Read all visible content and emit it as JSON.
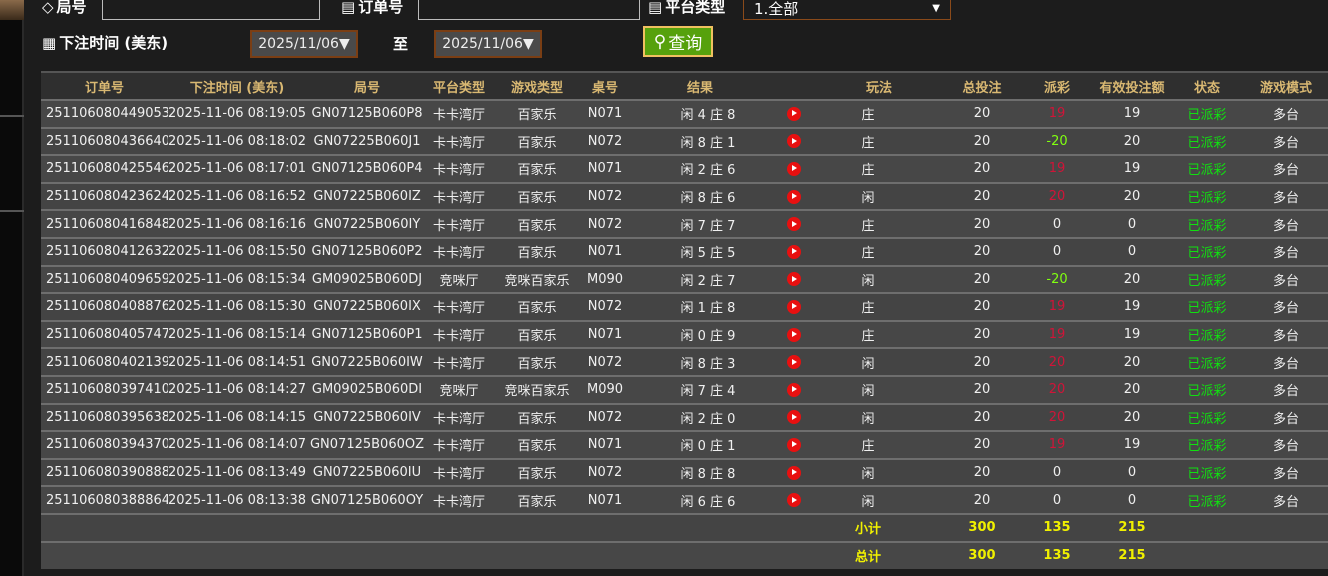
{
  "filters": {
    "round_label": "局号",
    "round_value": "",
    "order_label": "订单号",
    "order_value": "",
    "platform_label": "平台类型",
    "platform_value": "1.全部",
    "time_label": "下注时间 (美东)",
    "date_from": "2025/11/06▼",
    "to_label": "至",
    "date_to": "2025/11/06▼",
    "query_label": "查询"
  },
  "colors": {
    "accent_button": "#56a10c",
    "header_text": "#d9b872",
    "payout_red": "#d01438",
    "payout_green": "#80ff10",
    "status": "#10e010",
    "totals": "#f0f000"
  },
  "table": {
    "headers": [
      "订单号",
      "下注时间 (美东)",
      "局号",
      "平台类型",
      "游戏类型",
      "桌号",
      "结果",
      "",
      "玩法",
      "总投注",
      "派彩",
      "有效投注额",
      "状态",
      "游戏模式"
    ],
    "video_icon": "play-video-icon",
    "rows": [
      {
        "order": "251106080449053",
        "time": "2025-11-06 08:19:05",
        "round": "GN07125B060P8",
        "platform": "卡卡湾厅",
        "game": "百家乐",
        "table": "N071",
        "result": "闲 4 庄 8",
        "bet": "庄",
        "total": "20",
        "payout": "19",
        "payout_color": "red",
        "valid": "19",
        "status": "已派彩",
        "mode": "多台"
      },
      {
        "order": "251106080436640",
        "time": "2025-11-06 08:18:02",
        "round": "GN07225B060J1",
        "platform": "卡卡湾厅",
        "game": "百家乐",
        "table": "N072",
        "result": "闲 8 庄 1",
        "bet": "庄",
        "total": "20",
        "payout": "-20",
        "payout_color": "green",
        "valid": "20",
        "status": "已派彩",
        "mode": "多台"
      },
      {
        "order": "251106080425546",
        "time": "2025-11-06 08:17:01",
        "round": "GN07125B060P4",
        "platform": "卡卡湾厅",
        "game": "百家乐",
        "table": "N071",
        "result": "闲 2 庄 6",
        "bet": "庄",
        "total": "20",
        "payout": "19",
        "payout_color": "red",
        "valid": "19",
        "status": "已派彩",
        "mode": "多台"
      },
      {
        "order": "251106080423624",
        "time": "2025-11-06 08:16:52",
        "round": "GN07225B060IZ",
        "platform": "卡卡湾厅",
        "game": "百家乐",
        "table": "N072",
        "result": "闲 8 庄 6",
        "bet": "闲",
        "total": "20",
        "payout": "20",
        "payout_color": "red",
        "valid": "20",
        "status": "已派彩",
        "mode": "多台"
      },
      {
        "order": "251106080416848",
        "time": "2025-11-06 08:16:16",
        "round": "GN07225B060IY",
        "platform": "卡卡湾厅",
        "game": "百家乐",
        "table": "N072",
        "result": "闲 7 庄 7",
        "bet": "庄",
        "total": "20",
        "payout": "0",
        "payout_color": "white",
        "valid": "0",
        "status": "已派彩",
        "mode": "多台"
      },
      {
        "order": "251106080412632",
        "time": "2025-11-06 08:15:50",
        "round": "GN07125B060P2",
        "platform": "卡卡湾厅",
        "game": "百家乐",
        "table": "N071",
        "result": "闲 5 庄 5",
        "bet": "庄",
        "total": "20",
        "payout": "0",
        "payout_color": "white",
        "valid": "0",
        "status": "已派彩",
        "mode": "多台"
      },
      {
        "order": "251106080409659",
        "time": "2025-11-06 08:15:34",
        "round": "GM09025B060DJ",
        "platform": "竞咪厅",
        "game": "竞咪百家乐",
        "table": "M090",
        "result": "闲 2 庄 7",
        "bet": "闲",
        "total": "20",
        "payout": "-20",
        "payout_color": "green",
        "valid": "20",
        "status": "已派彩",
        "mode": "多台"
      },
      {
        "order": "251106080408876",
        "time": "2025-11-06 08:15:30",
        "round": "GN07225B060IX",
        "platform": "卡卡湾厅",
        "game": "百家乐",
        "table": "N072",
        "result": "闲 1 庄 8",
        "bet": "庄",
        "total": "20",
        "payout": "19",
        "payout_color": "red",
        "valid": "19",
        "status": "已派彩",
        "mode": "多台"
      },
      {
        "order": "251106080405747",
        "time": "2025-11-06 08:15:14",
        "round": "GN07125B060P1",
        "platform": "卡卡湾厅",
        "game": "百家乐",
        "table": "N071",
        "result": "闲 0 庄 9",
        "bet": "庄",
        "total": "20",
        "payout": "19",
        "payout_color": "red",
        "valid": "19",
        "status": "已派彩",
        "mode": "多台"
      },
      {
        "order": "251106080402139",
        "time": "2025-11-06 08:14:51",
        "round": "GN07225B060IW",
        "platform": "卡卡湾厅",
        "game": "百家乐",
        "table": "N072",
        "result": "闲 8 庄 3",
        "bet": "闲",
        "total": "20",
        "payout": "20",
        "payout_color": "red",
        "valid": "20",
        "status": "已派彩",
        "mode": "多台"
      },
      {
        "order": "251106080397410",
        "time": "2025-11-06 08:14:27",
        "round": "GM09025B060DI",
        "platform": "竞咪厅",
        "game": "竞咪百家乐",
        "table": "M090",
        "result": "闲 7 庄 4",
        "bet": "闲",
        "total": "20",
        "payout": "20",
        "payout_color": "red",
        "valid": "20",
        "status": "已派彩",
        "mode": "多台"
      },
      {
        "order": "251106080395638",
        "time": "2025-11-06 08:14:15",
        "round": "GN07225B060IV",
        "platform": "卡卡湾厅",
        "game": "百家乐",
        "table": "N072",
        "result": "闲 2 庄 0",
        "bet": "闲",
        "total": "20",
        "payout": "20",
        "payout_color": "red",
        "valid": "20",
        "status": "已派彩",
        "mode": "多台"
      },
      {
        "order": "251106080394370",
        "time": "2025-11-06 08:14:07",
        "round": "GN07125B060OZ",
        "platform": "卡卡湾厅",
        "game": "百家乐",
        "table": "N071",
        "result": "闲 0 庄 1",
        "bet": "庄",
        "total": "20",
        "payout": "19",
        "payout_color": "red",
        "valid": "19",
        "status": "已派彩",
        "mode": "多台"
      },
      {
        "order": "251106080390888",
        "time": "2025-11-06 08:13:49",
        "round": "GN07225B060IU",
        "platform": "卡卡湾厅",
        "game": "百家乐",
        "table": "N072",
        "result": "闲 8 庄 8",
        "bet": "闲",
        "total": "20",
        "payout": "0",
        "payout_color": "white",
        "valid": "0",
        "status": "已派彩",
        "mode": "多台"
      },
      {
        "order": "251106080388864",
        "time": "2025-11-06 08:13:38",
        "round": "GN07125B060OY",
        "platform": "卡卡湾厅",
        "game": "百家乐",
        "table": "N071",
        "result": "闲 6 庄 6",
        "bet": "闲",
        "total": "20",
        "payout": "0",
        "payout_color": "white",
        "valid": "0",
        "status": "已派彩",
        "mode": "多台"
      }
    ],
    "subtotal": {
      "label": "小计",
      "total_bet": "300",
      "payout": "135",
      "valid_bet": "215"
    },
    "total": {
      "label": "总计",
      "total_bet": "300",
      "payout": "135",
      "valid_bet": "215"
    }
  }
}
